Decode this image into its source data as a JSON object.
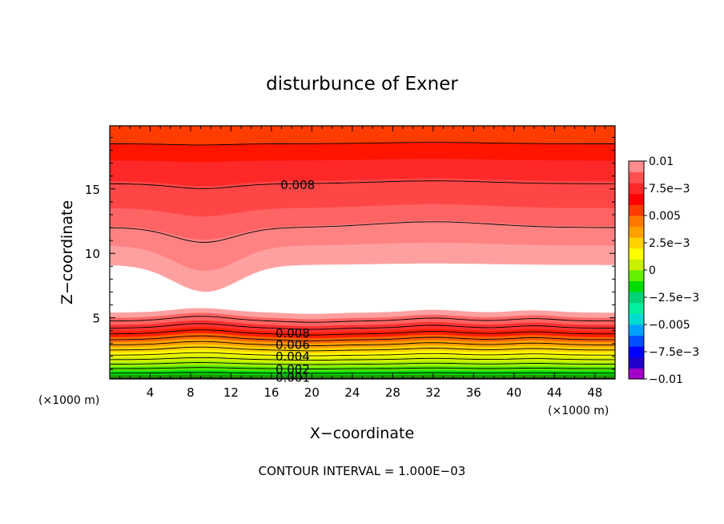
{
  "chart_data": {
    "type": "contour",
    "title": "disturbunce of Exner",
    "xlabel": "X−coordinate",
    "ylabel": "Z−coordinate",
    "x_unit_left": "(×1000 m)",
    "x_unit_right": "(×1000 m)",
    "footer": "CONTOUR INTERVAL = 1.000E−03",
    "xlim": [
      0,
      50
    ],
    "ylim": [
      0.25,
      19.9
    ],
    "x_ticks": [
      4,
      8,
      12,
      16,
      20,
      24,
      28,
      32,
      36,
      40,
      44,
      48
    ],
    "y_ticks": [
      5,
      10,
      15
    ],
    "contour_labels": [
      {
        "text": "0.008",
        "x": 18.6,
        "y": 15.3
      },
      {
        "text": "0.008",
        "x": 18.1,
        "y": 3.8
      },
      {
        "text": "0.006",
        "x": 18.1,
        "y": 2.9
      },
      {
        "text": "0.004",
        "x": 18.1,
        "y": 2.0
      },
      {
        "text": "0.002",
        "x": 18.1,
        "y": 1.0
      },
      {
        "text": "0.001",
        "x": 18.1,
        "y": 0.35
      }
    ],
    "colorbar": {
      "labels": [
        "0.01",
        "7.5e−3",
        "0.005",
        "2.5e−3",
        "0",
        "−2.5e−3",
        "−0.005",
        "−7.5e−3",
        "−0.01"
      ],
      "colors": [
        "#a000c8",
        "#2000c8",
        "#0000ff",
        "#0050ff",
        "#00a0ff",
        "#00dcd2",
        "#00f0a0",
        "#00d278",
        "#00dc00",
        "#64f000",
        "#c8f000",
        "#ffff00",
        "#ffd200",
        "#ffa000",
        "#ff7800",
        "#ff3c00",
        "#ff0000",
        "#ff2828",
        "#ff5050",
        "#ff8c8c"
      ]
    }
  }
}
